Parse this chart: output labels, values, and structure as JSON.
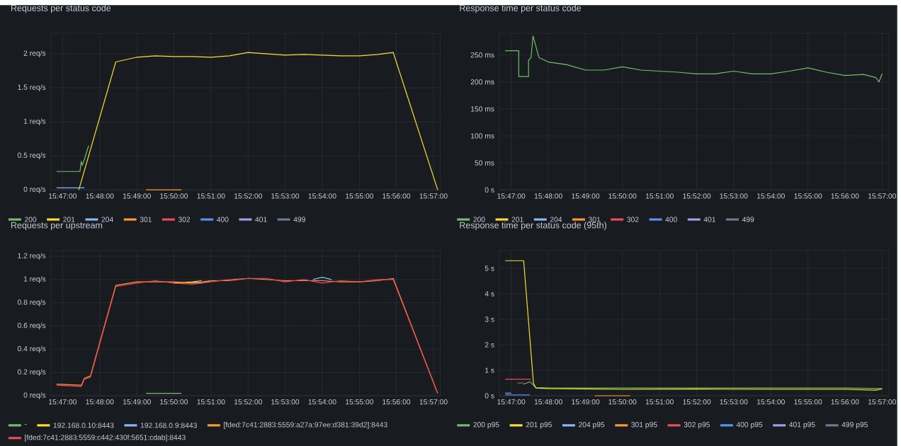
{
  "chart_data": [
    {
      "type": "line",
      "title": "Requests per status code",
      "xlim": [
        15.778,
        15.953
      ],
      "ylim": [
        0,
        2.3
      ],
      "grid": true,
      "legend": "bottom",
      "marker": "none",
      "line_style": "solid",
      "xticks": [
        {
          "value": 15.7833,
          "label": "15:47:00"
        },
        {
          "value": 15.8,
          "label": "15:48:00"
        },
        {
          "value": 15.8167,
          "label": "15:49:00"
        },
        {
          "value": 15.8333,
          "label": "15:50:00"
        },
        {
          "value": 15.85,
          "label": "15:51:00"
        },
        {
          "value": 15.8667,
          "label": "15:52:00"
        },
        {
          "value": 15.8833,
          "label": "15:53:00"
        },
        {
          "value": 15.9,
          "label": "15:54:00"
        },
        {
          "value": 15.9167,
          "label": "15:55:00"
        },
        {
          "value": 15.9333,
          "label": "15:56:00"
        },
        {
          "value": 15.95,
          "label": "15:57:00"
        }
      ],
      "yticks": [
        {
          "value": 0,
          "label": "0 req/s"
        },
        {
          "value": 0.5,
          "label": "0.5 req/s"
        },
        {
          "value": 1,
          "label": "1 req/s"
        },
        {
          "value": 1.5,
          "label": "1.5 req/s"
        },
        {
          "value": 2,
          "label": "2 req/s"
        }
      ],
      "series": [
        {
          "name": "200",
          "color": "#73bf69",
          "x": [
            15.7806,
            15.7911,
            15.7917,
            15.7922,
            15.7931,
            15.795
          ],
          "values": [
            0.27,
            0.27,
            0.42,
            0.36,
            0.45,
            0.65
          ]
        },
        {
          "name": "201",
          "color": "#fade2a",
          "x": [
            15.7906,
            15.8072,
            15.8167,
            15.825,
            15.8333,
            15.8417,
            15.85,
            15.8583,
            15.8667,
            15.875,
            15.8833,
            15.8917,
            15.9,
            15.9083,
            15.9167,
            15.925,
            15.9319,
            15.9519
          ],
          "values": [
            0,
            1.88,
            1.95,
            1.97,
            1.96,
            1.96,
            1.95,
            1.97,
            2.02,
            2.0,
            1.98,
            1.99,
            1.98,
            1.97,
            1.97,
            1.99,
            2.02,
            0
          ]
        },
        {
          "name": "204",
          "color": "#8ab8ff",
          "x": [
            15.7806,
            15.7931
          ],
          "values": [
            0.03,
            0.03
          ]
        },
        {
          "name": "301",
          "color": "#ff9830",
          "x": [
            15.8208,
            15.8367
          ],
          "values": [
            0,
            0
          ]
        },
        {
          "name": "302",
          "color": "#f2495c"
        },
        {
          "name": "400",
          "color": "#5794f2"
        },
        {
          "name": "401",
          "color": "#a0a0e8"
        },
        {
          "name": "499",
          "color": "#6e7a94"
        }
      ]
    },
    {
      "type": "line",
      "title": "Response time per status code",
      "xlim": [
        15.778,
        15.953
      ],
      "ylim": [
        0,
        290
      ],
      "grid": true,
      "legend": "bottom",
      "marker": "none",
      "line_style": "solid",
      "xticks": [
        {
          "value": 15.7833,
          "label": "15:47:00"
        },
        {
          "value": 15.8,
          "label": "15:48:00"
        },
        {
          "value": 15.8167,
          "label": "15:49:00"
        },
        {
          "value": 15.8333,
          "label": "15:50:00"
        },
        {
          "value": 15.85,
          "label": "15:51:00"
        },
        {
          "value": 15.8667,
          "label": "15:52:00"
        },
        {
          "value": 15.8833,
          "label": "15:53:00"
        },
        {
          "value": 15.9,
          "label": "15:54:00"
        },
        {
          "value": 15.9167,
          "label": "15:55:00"
        },
        {
          "value": 15.9333,
          "label": "15:56:00"
        },
        {
          "value": 15.95,
          "label": "15:57:00"
        }
      ],
      "yticks": [
        {
          "value": 0,
          "label": "0 s"
        },
        {
          "value": 50,
          "label": "50 ms"
        },
        {
          "value": 100,
          "label": "100 ms"
        },
        {
          "value": 150,
          "label": "150 ms"
        },
        {
          "value": 200,
          "label": "200 ms"
        },
        {
          "value": 250,
          "label": "250 ms"
        }
      ],
      "series": [
        {
          "name": "200",
          "color": "#73bf69",
          "x": [
            15.7806,
            15.7867,
            15.7867,
            15.7911,
            15.7911,
            15.7922,
            15.7931,
            15.7958,
            15.8,
            15.8083,
            15.8167,
            15.825,
            15.8333,
            15.8417,
            15.85,
            15.8583,
            15.8667,
            15.875,
            15.8833,
            15.8917,
            15.9,
            15.9083,
            15.9167,
            15.925,
            15.9333,
            15.9417,
            15.9472,
            15.9486,
            15.95
          ],
          "values": [
            258,
            258,
            210,
            210,
            240,
            245,
            285,
            245,
            237,
            232,
            222,
            222,
            228,
            222,
            220,
            218,
            215,
            215,
            220,
            215,
            215,
            220,
            226,
            218,
            212,
            214,
            208,
            200,
            215
          ]
        },
        {
          "name": "201",
          "color": "#fade2a"
        },
        {
          "name": "204",
          "color": "#8ab8ff"
        },
        {
          "name": "301",
          "color": "#ff9830"
        },
        {
          "name": "302",
          "color": "#f2495c"
        },
        {
          "name": "400",
          "color": "#5794f2"
        },
        {
          "name": "401",
          "color": "#a0a0e8"
        },
        {
          "name": "499",
          "color": "#6e7a94"
        }
      ]
    },
    {
      "type": "line",
      "title": "Requests per upstream",
      "xlim": [
        15.778,
        15.953
      ],
      "ylim": [
        0,
        1.25
      ],
      "grid": true,
      "legend": "bottom",
      "marker": "none",
      "line_style": "solid",
      "xticks": [
        {
          "value": 15.7833,
          "label": "15:47:00"
        },
        {
          "value": 15.8,
          "label": "15:48:00"
        },
        {
          "value": 15.8167,
          "label": "15:49:00"
        },
        {
          "value": 15.8333,
          "label": "15:50:00"
        },
        {
          "value": 15.85,
          "label": "15:51:00"
        },
        {
          "value": 15.8667,
          "label": "15:52:00"
        },
        {
          "value": 15.8833,
          "label": "15:53:00"
        },
        {
          "value": 15.9,
          "label": "15:54:00"
        },
        {
          "value": 15.9167,
          "label": "15:55:00"
        },
        {
          "value": 15.9333,
          "label": "15:56:00"
        },
        {
          "value": 15.95,
          "label": "15:57:00"
        }
      ],
      "yticks": [
        {
          "value": 0,
          "label": "0 req/s"
        },
        {
          "value": 0.2,
          "label": "0.2 req/s"
        },
        {
          "value": 0.4,
          "label": "0.4 req/s"
        },
        {
          "value": 0.6,
          "label": "0.6 req/s"
        },
        {
          "value": 0.8,
          "label": "0.8 req/s"
        },
        {
          "value": 1,
          "label": "1 req/s"
        },
        {
          "value": 1.2,
          "label": "1.2 req/s"
        }
      ],
      "series": [
        {
          "name": "-",
          "color": "#73bf69",
          "x": [
            15.8208,
            15.8367
          ],
          "values": [
            0.02,
            0.02
          ]
        },
        {
          "name": "192.168.0.10:8443",
          "color": "#fade2a",
          "x": [
            15.8333,
            15.8417,
            15.8458
          ],
          "values": [
            0.97,
            0.98,
            0.99
          ]
        },
        {
          "name": "192.168.0.9:8443",
          "color": "#8ab8ff",
          "x": [
            15.8417,
            15.8458,
            15.85,
            15.875,
            15.8958,
            15.9,
            15.9042
          ],
          "values": [
            0.98,
            0.97,
            0.99,
            null,
            1.0,
            1.02,
            1.0
          ]
        },
        {
          "name": "[fded:7c41:2883:5559:a27a:97ee:d381:39d2]:8443",
          "color": "#ff9830",
          "x": [
            15.7806,
            15.7917,
            15.7931,
            15.7958,
            15.8072,
            15.8167,
            15.825,
            15.8333,
            15.8417,
            15.85,
            15.8583,
            15.8667,
            15.875,
            15.8833,
            15.8917,
            15.9,
            15.9083,
            15.9167,
            15.925,
            15.9319,
            15.9519
          ],
          "values": [
            0.1,
            0.09,
            0.15,
            0.17,
            0.95,
            0.98,
            0.98,
            0.98,
            0.97,
            0.99,
            0.99,
            1.01,
            1.0,
            0.99,
            0.99,
            0.99,
            0.98,
            0.98,
            0.99,
            1.01,
            0.02
          ]
        },
        {
          "name": "[fded:7c41:2883:5559:c442:430f:5651:cdab]:8443",
          "color": "#f2495c",
          "x": [
            15.7806,
            15.7917,
            15.7931,
            15.7958,
            15.8072,
            15.8167,
            15.825,
            15.8333,
            15.8417,
            15.85,
            15.8583,
            15.8667,
            15.875,
            15.8833,
            15.8917,
            15.9,
            15.9083,
            15.9167,
            15.925,
            15.9319,
            15.9519
          ],
          "values": [
            0.09,
            0.08,
            0.14,
            0.16,
            0.94,
            0.97,
            0.99,
            0.97,
            0.96,
            0.98,
            1.0,
            1.01,
            1.01,
            0.98,
            1.0,
            0.97,
            0.99,
            0.98,
            1.0,
            1.0,
            0.02
          ]
        }
      ]
    },
    {
      "type": "line",
      "title": "Response time per status code (95th)",
      "xlim": [
        15.778,
        15.953
      ],
      "ylim": [
        0,
        5.7
      ],
      "grid": true,
      "legend": "bottom",
      "marker": "none",
      "line_style": "solid",
      "xticks": [
        {
          "value": 15.7833,
          "label": "15:47:00"
        },
        {
          "value": 15.8,
          "label": "15:48:00"
        },
        {
          "value": 15.8167,
          "label": "15:49:00"
        },
        {
          "value": 15.8333,
          "label": "15:50:00"
        },
        {
          "value": 15.85,
          "label": "15:51:00"
        },
        {
          "value": 15.8667,
          "label": "15:52:00"
        },
        {
          "value": 15.8833,
          "label": "15:53:00"
        },
        {
          "value": 15.9,
          "label": "15:54:00"
        },
        {
          "value": 15.9167,
          "label": "15:55:00"
        },
        {
          "value": 15.9333,
          "label": "15:56:00"
        },
        {
          "value": 15.95,
          "label": "15:57:00"
        }
      ],
      "yticks": [
        {
          "value": 0,
          "label": "0 s"
        },
        {
          "value": 1,
          "label": "1 s"
        },
        {
          "value": 2,
          "label": "2 s"
        },
        {
          "value": 3,
          "label": "3 s"
        },
        {
          "value": 4,
          "label": "4 s"
        },
        {
          "value": 5,
          "label": "5 s"
        }
      ],
      "series": [
        {
          "name": "200 p95",
          "color": "#73bf69",
          "x": [
            15.7889,
            15.7917,
            15.7944,
            15.8,
            15.8333,
            15.8667,
            15.9,
            15.9333,
            15.95
          ],
          "values": [
            0.45,
            0.55,
            0.32,
            0.3,
            0.3,
            0.3,
            0.3,
            0.3,
            0.28
          ]
        },
        {
          "name": "201 p95",
          "color": "#fade2a",
          "x": [
            15.7806,
            15.7889,
            15.7933,
            15.7944,
            15.8,
            15.8333,
            15.8667,
            15.9,
            15.9333,
            15.9472,
            15.95
          ],
          "values": [
            5.3,
            5.3,
            0.5,
            0.3,
            0.28,
            0.25,
            0.26,
            0.25,
            0.25,
            0.22,
            0.27
          ]
        },
        {
          "name": "204 p95",
          "color": "#8ab8ff"
        },
        {
          "name": "301 p95",
          "color": "#ff9830",
          "x": [
            15.8208,
            15.8367
          ],
          "values": [
            0,
            0
          ]
        },
        {
          "name": "302 p95",
          "color": "#f2495c",
          "x": [
            15.7806,
            15.7922
          ],
          "values": [
            0.65,
            0.65
          ]
        },
        {
          "name": "400 p95",
          "color": "#5794f2",
          "x": [
            15.7806,
            15.7917
          ],
          "values": [
            0.03,
            0.03
          ]
        },
        {
          "name": "401 p95",
          "color": "#a0a0e8",
          "x": [
            15.7806,
            15.7833
          ],
          "values": [
            0.1,
            0.1
          ]
        },
        {
          "name": "499 p95",
          "color": "#6e7a94",
          "x": [
            15.7861,
            15.7889
          ],
          "values": [
            0.5,
            0.5
          ]
        }
      ]
    }
  ]
}
